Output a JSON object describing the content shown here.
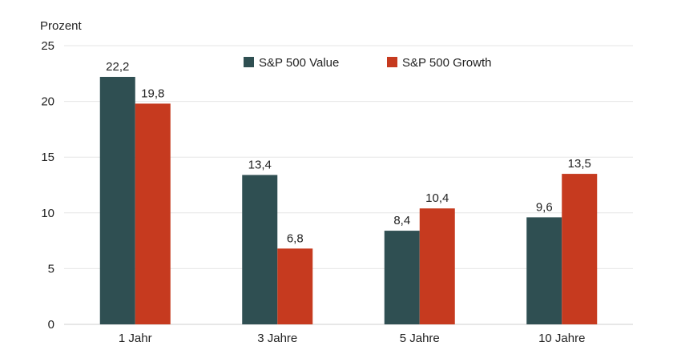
{
  "chart_data": {
    "type": "bar",
    "title": "",
    "xlabel": "",
    "ylabel": "Prozent",
    "ylim": [
      0,
      25
    ],
    "yticks": [
      "0",
      "5",
      "10",
      "15",
      "20",
      "25"
    ],
    "categories": [
      "1 Jahr",
      "3 Jahre",
      "5 Jahre",
      "10 Jahre"
    ],
    "series": [
      {
        "name": "S&P 500 Value",
        "color": "#2f4f52",
        "values": [
          22.2,
          13.4,
          8.4,
          9.6
        ],
        "labels": [
          "22,2",
          "13,4",
          "8,4",
          "9,6"
        ]
      },
      {
        "name": "S&P 500 Growth",
        "color": "#c63a1f",
        "values": [
          19.8,
          6.8,
          10.4,
          13.5
        ],
        "labels": [
          "19,8",
          "6,8",
          "10,4",
          "13,5"
        ]
      }
    ],
    "grid": true,
    "legend": "top-center"
  }
}
